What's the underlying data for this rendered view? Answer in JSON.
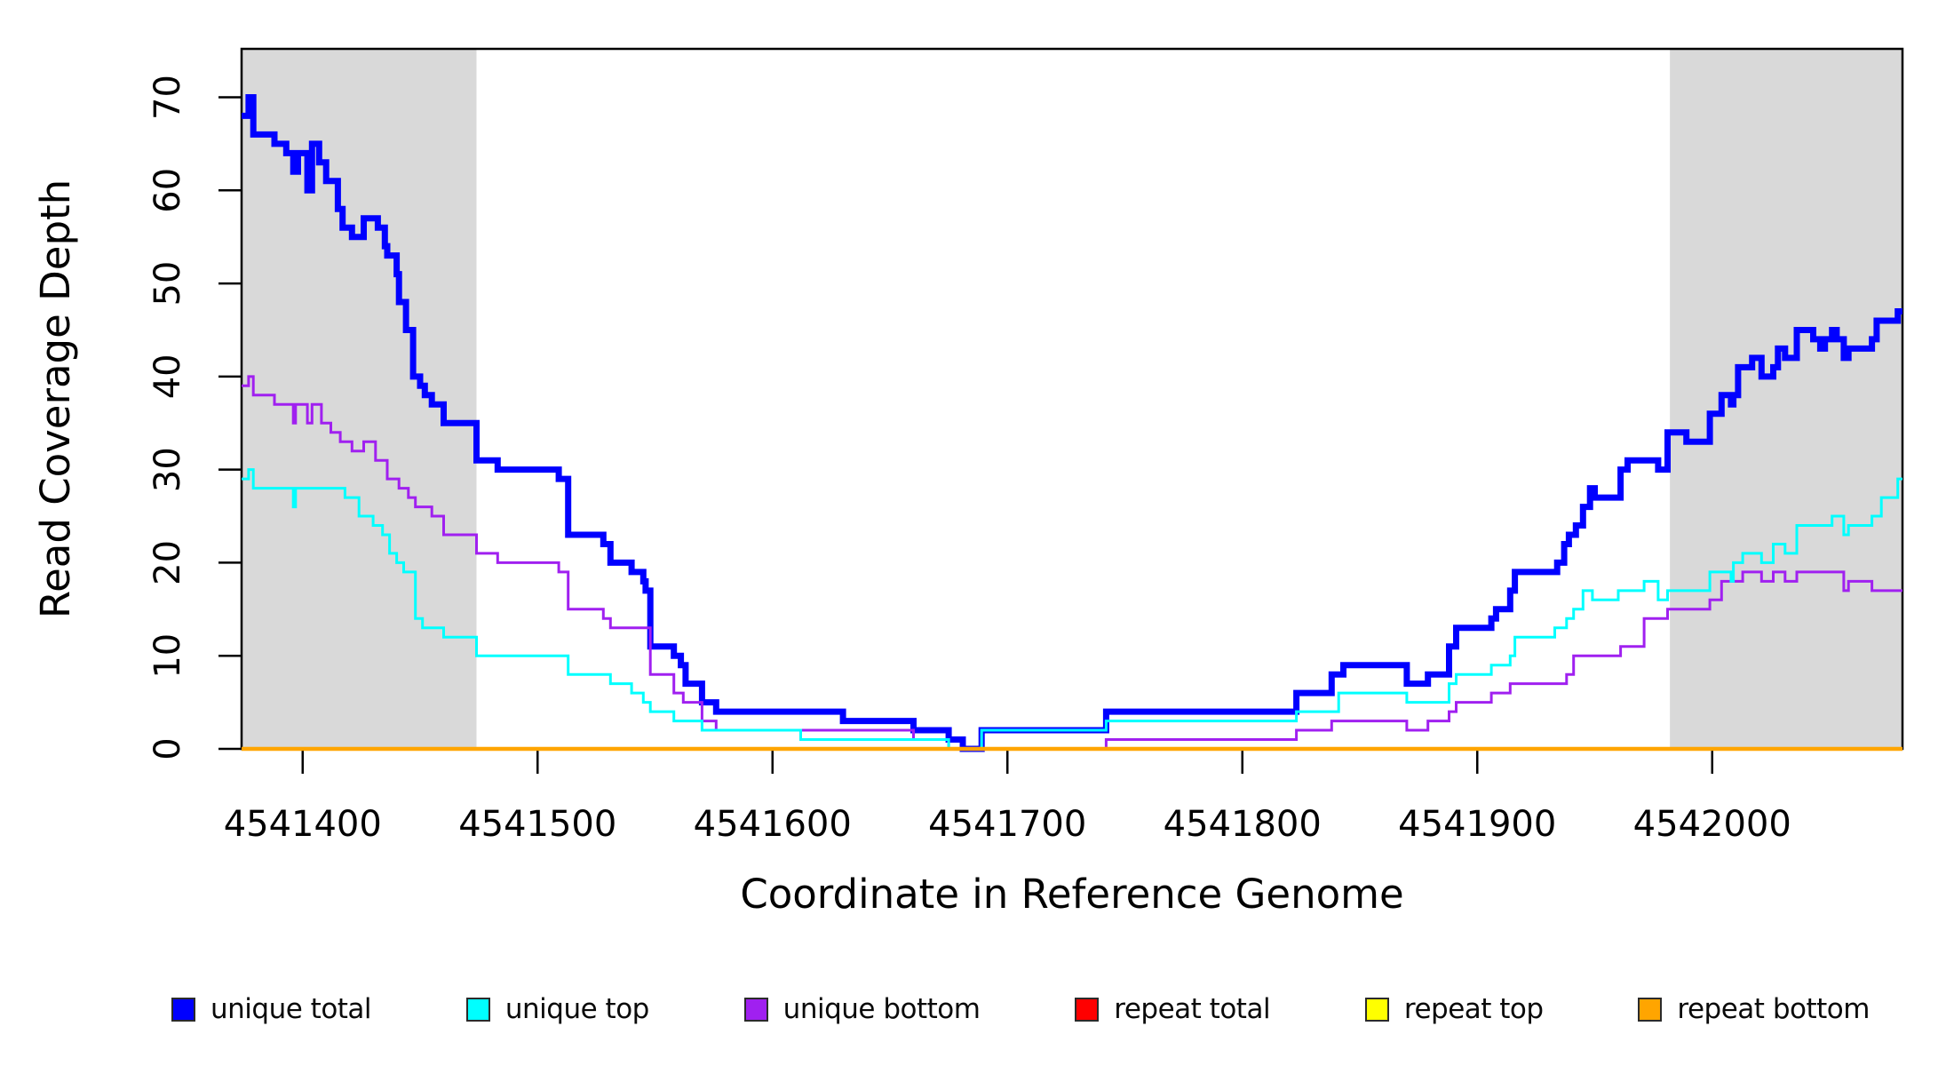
{
  "chart_data": {
    "type": "line",
    "subtype": "step-after",
    "title": "",
    "xlabel": "Coordinate in Reference Genome",
    "ylabel": "Read Coverage Depth",
    "xlim": [
      4541374,
      4542081
    ],
    "ylim": [
      0,
      75
    ],
    "grid": false,
    "legend_position": "bottom",
    "x_ticks": [
      4541400,
      4541500,
      4541600,
      4541700,
      4541800,
      4541900,
      4542000
    ],
    "x_tick_labels": [
      "4541400",
      "4541500",
      "4541600",
      "4541700",
      "4541800",
      "4541900",
      "4542000"
    ],
    "y_ticks": [
      0,
      10,
      20,
      30,
      40,
      50,
      60,
      70
    ],
    "y_tick_labels": [
      "0",
      "10",
      "20",
      "30",
      "40",
      "50",
      "60",
      "70"
    ],
    "shade_color": "#d9d9d9",
    "shaded_regions": [
      {
        "x0": 4541374,
        "x1": 4541474
      },
      {
        "x0": 4541982,
        "x1": 4542081
      }
    ],
    "series": [
      {
        "name": "unique total",
        "color": "#0000ff",
        "width": 7,
        "points": [
          [
            4541374,
            68
          ],
          [
            4541377,
            70
          ],
          [
            4541379,
            66
          ],
          [
            4541388,
            65
          ],
          [
            4541393,
            64
          ],
          [
            4541396,
            62
          ],
          [
            4541398,
            64
          ],
          [
            4541402,
            60
          ],
          [
            4541404,
            65
          ],
          [
            4541407,
            63
          ],
          [
            4541410,
            61
          ],
          [
            4541415,
            58
          ],
          [
            4541417,
            56
          ],
          [
            4541421,
            55
          ],
          [
            4541426,
            57
          ],
          [
            4541432,
            56
          ],
          [
            4541435,
            54
          ],
          [
            4541436,
            53
          ],
          [
            4541440,
            51
          ],
          [
            4541441,
            48
          ],
          [
            4541444,
            45
          ],
          [
            4541447,
            40
          ],
          [
            4541450,
            39
          ],
          [
            4541452,
            38
          ],
          [
            4541455,
            37
          ],
          [
            4541460,
            35
          ],
          [
            4541474,
            31
          ],
          [
            4541483,
            30
          ],
          [
            4541509,
            29
          ],
          [
            4541513,
            23
          ],
          [
            4541528,
            22
          ],
          [
            4541531,
            20
          ],
          [
            4541540,
            19
          ],
          [
            4541545,
            18
          ],
          [
            4541546,
            17
          ],
          [
            4541548,
            11
          ],
          [
            4541558,
            10
          ],
          [
            4541561,
            9
          ],
          [
            4541563,
            7
          ],
          [
            4541570,
            5
          ],
          [
            4541576,
            4
          ],
          [
            4541630,
            3
          ],
          [
            4541660,
            2
          ],
          [
            4541675,
            1
          ],
          [
            4541681,
            0
          ],
          [
            4541689,
            2
          ],
          [
            4541742,
            4
          ],
          [
            4541823,
            6
          ],
          [
            4541838,
            8
          ],
          [
            4541843,
            9
          ],
          [
            4541870,
            7
          ],
          [
            4541879,
            8
          ],
          [
            4541888,
            11
          ],
          [
            4541891,
            13
          ],
          [
            4541906,
            14
          ],
          [
            4541908,
            15
          ],
          [
            4541914,
            17
          ],
          [
            4541916,
            19
          ],
          [
            4541934,
            20
          ],
          [
            4541937,
            22
          ],
          [
            4541939,
            23
          ],
          [
            4541942,
            24
          ],
          [
            4541945,
            26
          ],
          [
            4541948,
            28
          ],
          [
            4541950,
            27
          ],
          [
            4541961,
            30
          ],
          [
            4541964,
            31
          ],
          [
            4541977,
            30
          ],
          [
            4541981,
            34
          ],
          [
            4541989,
            33
          ],
          [
            4541999,
            36
          ],
          [
            4542004,
            38
          ],
          [
            4542008,
            37
          ],
          [
            4542009,
            38
          ],
          [
            4542011,
            41
          ],
          [
            4542017,
            42
          ],
          [
            4542021,
            40
          ],
          [
            4542026,
            41
          ],
          [
            4542028,
            43
          ],
          [
            4542031,
            42
          ],
          [
            4542036,
            45
          ],
          [
            4542043,
            44
          ],
          [
            4542046,
            43
          ],
          [
            4542048,
            44
          ],
          [
            4542051,
            45
          ],
          [
            4542053,
            44
          ],
          [
            4542056,
            42
          ],
          [
            4542058,
            43
          ],
          [
            4542068,
            44
          ],
          [
            4542070,
            46
          ],
          [
            4542079,
            47
          ]
        ]
      },
      {
        "name": "unique top",
        "color": "#00ffff",
        "width": 3,
        "points": [
          [
            4541374,
            29
          ],
          [
            4541377,
            30
          ],
          [
            4541379,
            28
          ],
          [
            4541396,
            26
          ],
          [
            4541397,
            28
          ],
          [
            4541418,
            27
          ],
          [
            4541424,
            25
          ],
          [
            4541430,
            24
          ],
          [
            4541434,
            23
          ],
          [
            4541437,
            21
          ],
          [
            4541440,
            20
          ],
          [
            4541443,
            19
          ],
          [
            4541448,
            14
          ],
          [
            4541451,
            13
          ],
          [
            4541460,
            12
          ],
          [
            4541474,
            10
          ],
          [
            4541513,
            8
          ],
          [
            4541531,
            7
          ],
          [
            4541540,
            6
          ],
          [
            4541545,
            5
          ],
          [
            4541548,
            4
          ],
          [
            4541558,
            3
          ],
          [
            4541570,
            2
          ],
          [
            4541612,
            1
          ],
          [
            4541675,
            0
          ],
          [
            4541689,
            2
          ],
          [
            4541742,
            3
          ],
          [
            4541823,
            4
          ],
          [
            4541841,
            6
          ],
          [
            4541870,
            5
          ],
          [
            4541888,
            7
          ],
          [
            4541891,
            8
          ],
          [
            4541906,
            9
          ],
          [
            4541914,
            10
          ],
          [
            4541916,
            12
          ],
          [
            4541933,
            13
          ],
          [
            4541938,
            14
          ],
          [
            4541941,
            15
          ],
          [
            4541945,
            17
          ],
          [
            4541949,
            16
          ],
          [
            4541960,
            17
          ],
          [
            4541971,
            18
          ],
          [
            4541977,
            16
          ],
          [
            4541981,
            17
          ],
          [
            4541999,
            19
          ],
          [
            4542008,
            18
          ],
          [
            4542009,
            20
          ],
          [
            4542013,
            21
          ],
          [
            4542021,
            20
          ],
          [
            4542026,
            22
          ],
          [
            4542031,
            21
          ],
          [
            4542036,
            24
          ],
          [
            4542051,
            25
          ],
          [
            4542056,
            23
          ],
          [
            4542058,
            24
          ],
          [
            4542068,
            25
          ],
          [
            4542072,
            27
          ],
          [
            4542079,
            29
          ]
        ]
      },
      {
        "name": "unique bottom",
        "color": "#a020f0",
        "width": 3,
        "points": [
          [
            4541374,
            39
          ],
          [
            4541377,
            40
          ],
          [
            4541379,
            38
          ],
          [
            4541388,
            37
          ],
          [
            4541396,
            35
          ],
          [
            4541397,
            37
          ],
          [
            4541402,
            35
          ],
          [
            4541404,
            37
          ],
          [
            4541408,
            35
          ],
          [
            4541412,
            34
          ],
          [
            4541416,
            33
          ],
          [
            4541421,
            32
          ],
          [
            4541426,
            33
          ],
          [
            4541431,
            31
          ],
          [
            4541436,
            29
          ],
          [
            4541441,
            28
          ],
          [
            4541445,
            27
          ],
          [
            4541448,
            26
          ],
          [
            4541455,
            25
          ],
          [
            4541460,
            23
          ],
          [
            4541474,
            21
          ],
          [
            4541483,
            20
          ],
          [
            4541509,
            19
          ],
          [
            4541513,
            15
          ],
          [
            4541528,
            14
          ],
          [
            4541531,
            13
          ],
          [
            4541548,
            8
          ],
          [
            4541558,
            6
          ],
          [
            4541562,
            5
          ],
          [
            4541570,
            3
          ],
          [
            4541576,
            2
          ],
          [
            4541660,
            1
          ],
          [
            4541675,
            0
          ],
          [
            4541742,
            1
          ],
          [
            4541823,
            2
          ],
          [
            4541838,
            3
          ],
          [
            4541870,
            2
          ],
          [
            4541879,
            3
          ],
          [
            4541888,
            4
          ],
          [
            4541891,
            5
          ],
          [
            4541906,
            6
          ],
          [
            4541914,
            7
          ],
          [
            4541938,
            8
          ],
          [
            4541941,
            10
          ],
          [
            4541961,
            11
          ],
          [
            4541971,
            14
          ],
          [
            4541981,
            15
          ],
          [
            4541999,
            16
          ],
          [
            4542004,
            18
          ],
          [
            4542013,
            19
          ],
          [
            4542021,
            18
          ],
          [
            4542026,
            19
          ],
          [
            4542031,
            18
          ],
          [
            4542036,
            19
          ],
          [
            4542056,
            17
          ],
          [
            4542058,
            18
          ],
          [
            4542068,
            17
          ]
        ]
      },
      {
        "name": "repeat total",
        "color": "#ff0000",
        "width": 3,
        "points": [
          [
            4541374,
            0
          ]
        ]
      },
      {
        "name": "repeat top",
        "color": "#ffff00",
        "width": 3,
        "points": [
          [
            4541374,
            0
          ]
        ]
      },
      {
        "name": "repeat bottom",
        "color": "#ffa500",
        "width": 4.5,
        "points": [
          [
            4541374,
            0
          ]
        ]
      }
    ]
  },
  "axes": {
    "x_title": "Coordinate in Reference Genome",
    "y_title": "Read Coverage Depth"
  },
  "legend": {
    "items": [
      {
        "label": "unique total",
        "color": "#0000ff"
      },
      {
        "label": "unique top",
        "color": "#00ffff"
      },
      {
        "label": "unique bottom",
        "color": "#a020f0"
      },
      {
        "label": "repeat total",
        "color": "#ff0000"
      },
      {
        "label": "repeat top",
        "color": "#ffff00"
      },
      {
        "label": "repeat bottom",
        "color": "#ffa500"
      }
    ]
  }
}
